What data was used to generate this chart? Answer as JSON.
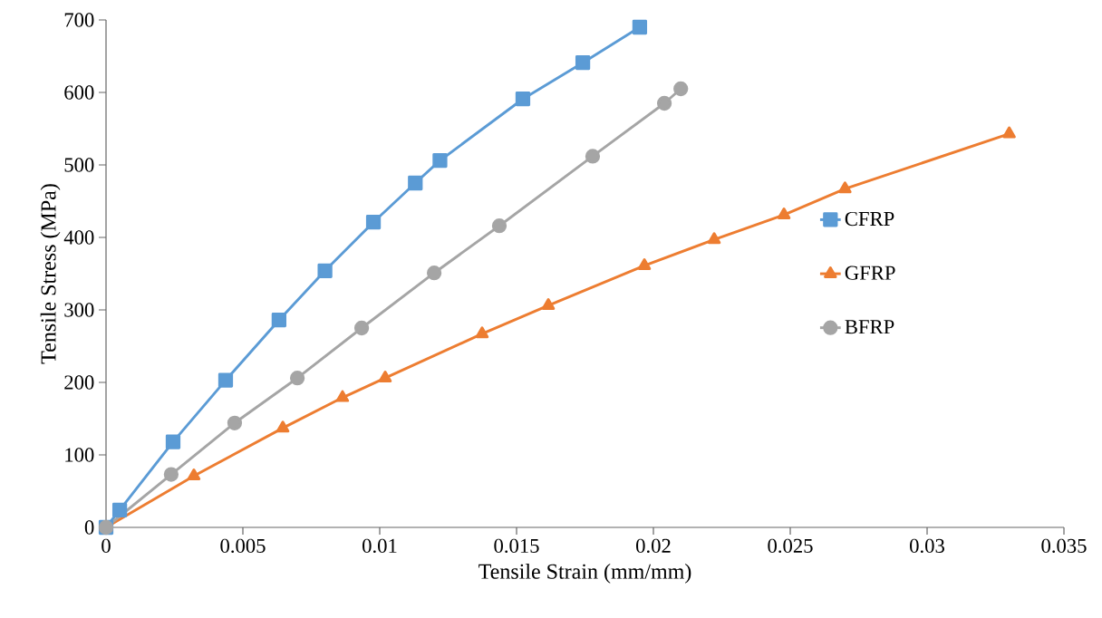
{
  "chart_data": {
    "type": "line",
    "xlabel": "Tensile Strain (mm/mm)",
    "ylabel": "Tensile Stress (MPa)",
    "xlim": [
      0,
      0.035
    ],
    "ylim": [
      0,
      700
    ],
    "xticks": [
      0,
      0.005,
      0.01,
      0.015,
      0.02,
      0.025,
      0.03,
      0.035
    ],
    "yticks": [
      0,
      100,
      200,
      300,
      400,
      500,
      600,
      700
    ],
    "grid": false,
    "legend": "right",
    "line_style": "solid",
    "series": [
      {
        "name": "CFRP",
        "color": "#5b9bd5",
        "marker": "square",
        "x": [
          0,
          0.0005,
          0.00245,
          0.00437,
          0.00632,
          0.008,
          0.00977,
          0.0113,
          0.0122,
          0.01523,
          0.01742,
          0.0195
        ],
        "values": [
          0,
          24,
          118,
          203,
          286,
          354,
          421,
          475,
          506,
          591,
          641,
          690
        ]
      },
      {
        "name": "GFRP",
        "color": "#ed7d31",
        "marker": "triangle",
        "x": [
          0,
          0.00321,
          0.00646,
          0.00864,
          0.0102,
          0.01374,
          0.01616,
          0.01967,
          0.02222,
          0.02477,
          0.027,
          0.033
        ],
        "values": [
          0,
          71,
          137,
          179,
          206,
          267,
          306,
          361,
          397,
          431,
          467,
          543
        ]
      },
      {
        "name": "BFRP",
        "color": "#a5a5a5",
        "marker": "circle",
        "x": [
          0,
          0.00238,
          0.0047,
          0.00699,
          0.00934,
          0.01199,
          0.01437,
          0.01778,
          0.0204,
          0.021
        ],
        "values": [
          0,
          73,
          144,
          206,
          275,
          351,
          416,
          512,
          585,
          605
        ]
      }
    ]
  }
}
